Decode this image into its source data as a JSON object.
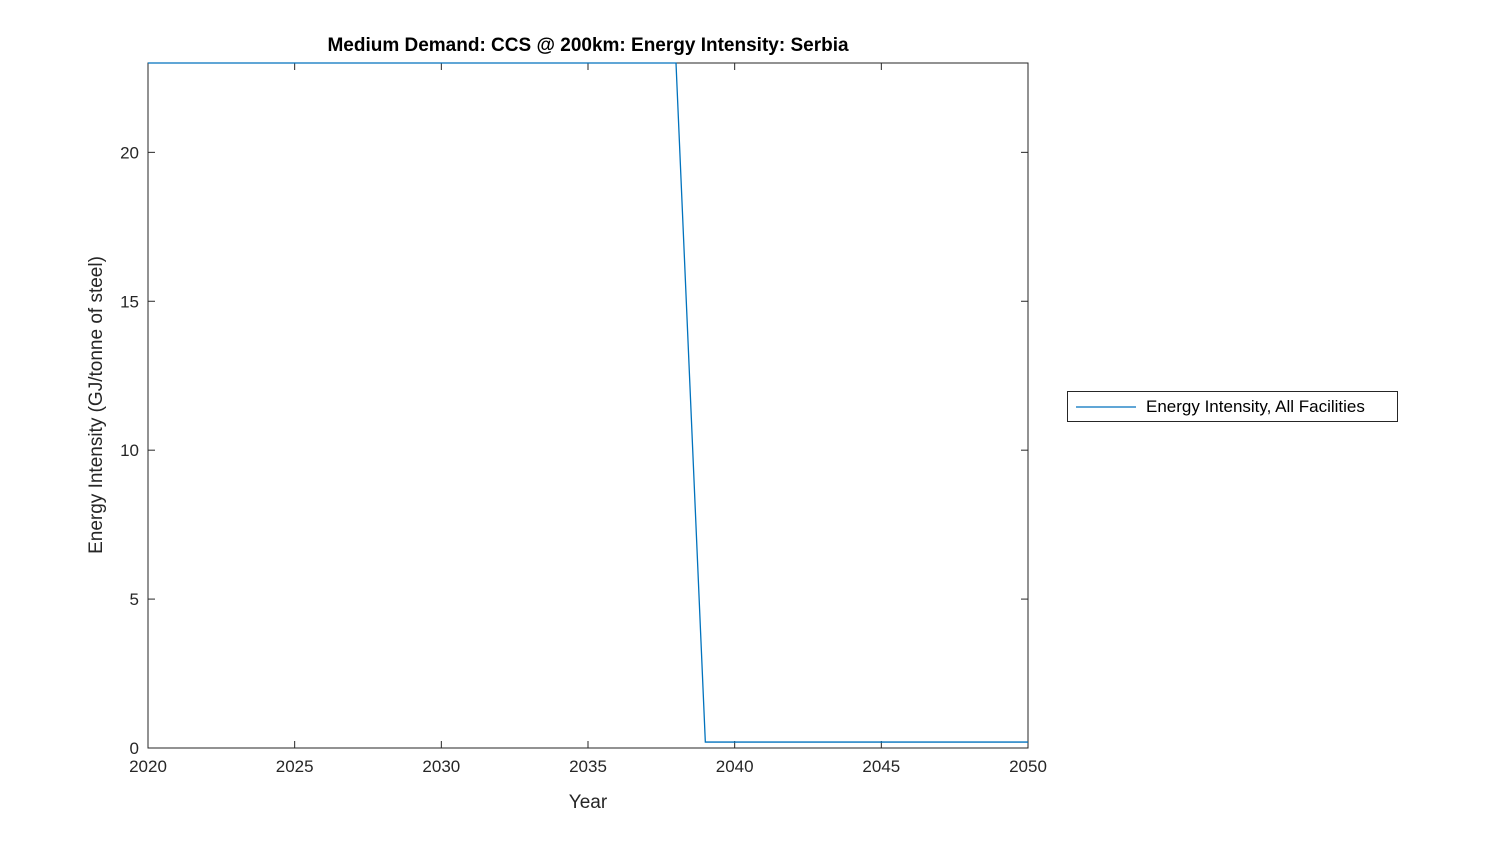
{
  "figure": {
    "background": "#ffffff"
  },
  "chart_data": {
    "type": "line",
    "title": "Medium Demand: CCS @ 200km: Energy Intensity: Serbia",
    "xlabel": "Year",
    "ylabel": "Energy Intensity (GJ/tonne of steel)",
    "xlim": [
      2020,
      2050
    ],
    "ylim": [
      0,
      23
    ],
    "xticks": [
      2020,
      2025,
      2030,
      2035,
      2040,
      2045,
      2050
    ],
    "yticks": [
      0,
      5,
      10,
      15,
      20
    ],
    "grid": false,
    "legend_position": "outside-right",
    "axis_color": "#262626",
    "tick_label_color": "#262626",
    "series": [
      {
        "name": "Energy Intensity, All Facilities",
        "color": "#0072BD",
        "x": [
          2020,
          2021,
          2022,
          2023,
          2024,
          2025,
          2026,
          2027,
          2028,
          2029,
          2030,
          2031,
          2032,
          2033,
          2034,
          2035,
          2036,
          2037,
          2038,
          2039,
          2040,
          2041,
          2042,
          2043,
          2044,
          2045,
          2046,
          2047,
          2048,
          2049,
          2050
        ],
        "y": [
          23,
          23,
          23,
          23,
          23,
          23,
          23,
          23,
          23,
          23,
          23,
          23,
          23,
          23,
          23,
          23,
          23,
          23,
          23,
          0.2,
          0.2,
          0.2,
          0.2,
          0.2,
          0.2,
          0.2,
          0.2,
          0.2,
          0.2,
          0.2,
          0.2
        ]
      }
    ]
  },
  "legend": {
    "items": [
      {
        "label": "Energy Intensity, All Facilities",
        "color": "#0072BD"
      }
    ]
  }
}
